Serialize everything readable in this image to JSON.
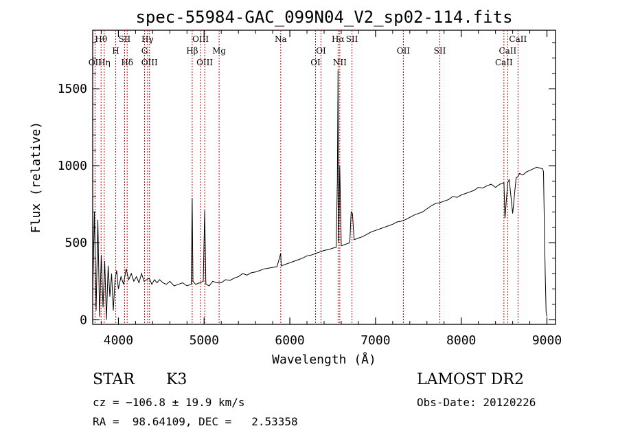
{
  "chart_data": {
    "type": "line",
    "title": "spec-55984-GAC_099N04_V2_sp02-114.fits",
    "xlabel": "Wavelength (Å)",
    "ylabel": "Flux (relative)",
    "xlim": [
      3700,
      9100
    ],
    "ylim": [
      -30,
      1880
    ],
    "xticks": [
      4000,
      5000,
      6000,
      7000,
      8000,
      9000
    ],
    "yticks": [
      0,
      500,
      1000,
      1500
    ],
    "grid": false,
    "spectral_lines": [
      {
        "label": "Hθ",
        "wavelength": 3798,
        "row": 0
      },
      {
        "label": "OII",
        "wavelength": 3727,
        "row": 2
      },
      {
        "label": "Hη",
        "wavelength": 3835,
        "row": 2
      },
      {
        "label": "H",
        "wavelength": 3968,
        "row": 1
      },
      {
        "label": "SII",
        "wavelength": 4072,
        "row": 0
      },
      {
        "label": "Hδ",
        "wavelength": 4102,
        "row": 2
      },
      {
        "label": "Hγ",
        "wavelength": 4340,
        "row": 0
      },
      {
        "label": "G",
        "wavelength": 4305,
        "row": 1
      },
      {
        "label": "OIII",
        "wavelength": 4363,
        "row": 2
      },
      {
        "label": "OIII",
        "wavelength": 4959,
        "row": 0
      },
      {
        "label": "Hβ",
        "wavelength": 4861,
        "row": 1
      },
      {
        "label": "OIII",
        "wavelength": 5007,
        "row": 2
      },
      {
        "label": "Mg",
        "wavelength": 5175,
        "row": 1
      },
      {
        "label": "Na",
        "wavelength": 5894,
        "row": 0
      },
      {
        "label": "OI",
        "wavelength": 6364,
        "row": 1
      },
      {
        "label": "OI",
        "wavelength": 6300,
        "row": 2
      },
      {
        "label": "Hα",
        "wavelength": 6563,
        "row": 0
      },
      {
        "label": "SII",
        "wavelength": 6725,
        "row": 0
      },
      {
        "label": "NII",
        "wavelength": 6583,
        "row": 2
      },
      {
        "label": "OII",
        "wavelength": 7325,
        "row": 1
      },
      {
        "label": "SII",
        "wavelength": 7750,
        "row": 1
      },
      {
        "label": "CaII",
        "wavelength": 8662,
        "row": 0
      },
      {
        "label": "CaII",
        "wavelength": 8542,
        "row": 1
      },
      {
        "label": "CaII",
        "wavelength": 8498,
        "row": 2
      }
    ],
    "series": [
      {
        "x": [
          3700,
          3720,
          3740,
          3760,
          3780,
          3800,
          3820,
          3840,
          3860,
          3880,
          3900,
          3920,
          3940,
          3960,
          3980,
          4000,
          4030,
          4060,
          4090,
          4120,
          4150,
          4180,
          4210,
          4240,
          4270,
          4300,
          4330,
          4360,
          4390,
          4420,
          4450,
          4480,
          4520,
          4560,
          4600,
          4650,
          4700,
          4750,
          4800,
          4850,
          4861,
          4870,
          4900,
          4950,
          4990,
          5007,
          5020,
          5060,
          5100,
          5150,
          5200,
          5250,
          5300,
          5350,
          5400,
          5450,
          5500,
          5550,
          5600,
          5650,
          5700,
          5750,
          5800,
          5850,
          5894,
          5900,
          5950,
          6000,
          6050,
          6100,
          6150,
          6200,
          6250,
          6300,
          6350,
          6400,
          6450,
          6500,
          6540,
          6555,
          6563,
          6570,
          6583,
          6600,
          6650,
          6700,
          6716,
          6731,
          6750,
          6800,
          6850,
          6900,
          6950,
          7000,
          7050,
          7100,
          7150,
          7200,
          7250,
          7300,
          7350,
          7400,
          7450,
          7500,
          7550,
          7600,
          7650,
          7700,
          7750,
          7800,
          7850,
          7900,
          7950,
          8000,
          8050,
          8100,
          8150,
          8200,
          8250,
          8300,
          8350,
          8400,
          8450,
          8498,
          8510,
          8542,
          8560,
          8600,
          8640,
          8662,
          8680,
          8720,
          8760,
          8800,
          8840,
          8880,
          8920,
          8950,
          8960,
          8970,
          8980,
          8990,
          9000
        ],
        "y": [
          150,
          700,
          60,
          650,
          20,
          420,
          80,
          380,
          0,
          350,
          150,
          300,
          60,
          260,
          320,
          200,
          280,
          230,
          330,
          260,
          300,
          250,
          280,
          240,
          300,
          250,
          260,
          270,
          230,
          260,
          240,
          260,
          240,
          230,
          250,
          220,
          230,
          240,
          220,
          230,
          790,
          250,
          230,
          240,
          250,
          710,
          230,
          220,
          250,
          240,
          240,
          260,
          255,
          270,
          280,
          300,
          290,
          305,
          310,
          320,
          330,
          335,
          340,
          345,
          430,
          350,
          360,
          370,
          380,
          390,
          400,
          415,
          420,
          430,
          440,
          450,
          455,
          465,
          470,
          900,
          1620,
          500,
          1000,
          480,
          490,
          500,
          700,
          690,
          520,
          530,
          540,
          555,
          570,
          580,
          590,
          600,
          610,
          620,
          635,
          640,
          650,
          665,
          680,
          690,
          700,
          720,
          740,
          755,
          760,
          770,
          780,
          800,
          795,
          810,
          820,
          830,
          840,
          860,
          855,
          870,
          880,
          860,
          880,
          890,
          660,
          890,
          910,
          690,
          920,
          930,
          950,
          940,
          960,
          970,
          980,
          990,
          985,
          980,
          960,
          600,
          300,
          50,
          20
        ]
      }
    ]
  },
  "footer": {
    "object_class": "STAR",
    "subclass": "K3",
    "redshift_line": "cz = −106.8 ± 19.9 km/s",
    "coords_line": "RA =  98.64109, DEC =   2.53358",
    "survey": "LAMOST DR2",
    "obs_date_line": "Obs-Date: 20120226"
  }
}
